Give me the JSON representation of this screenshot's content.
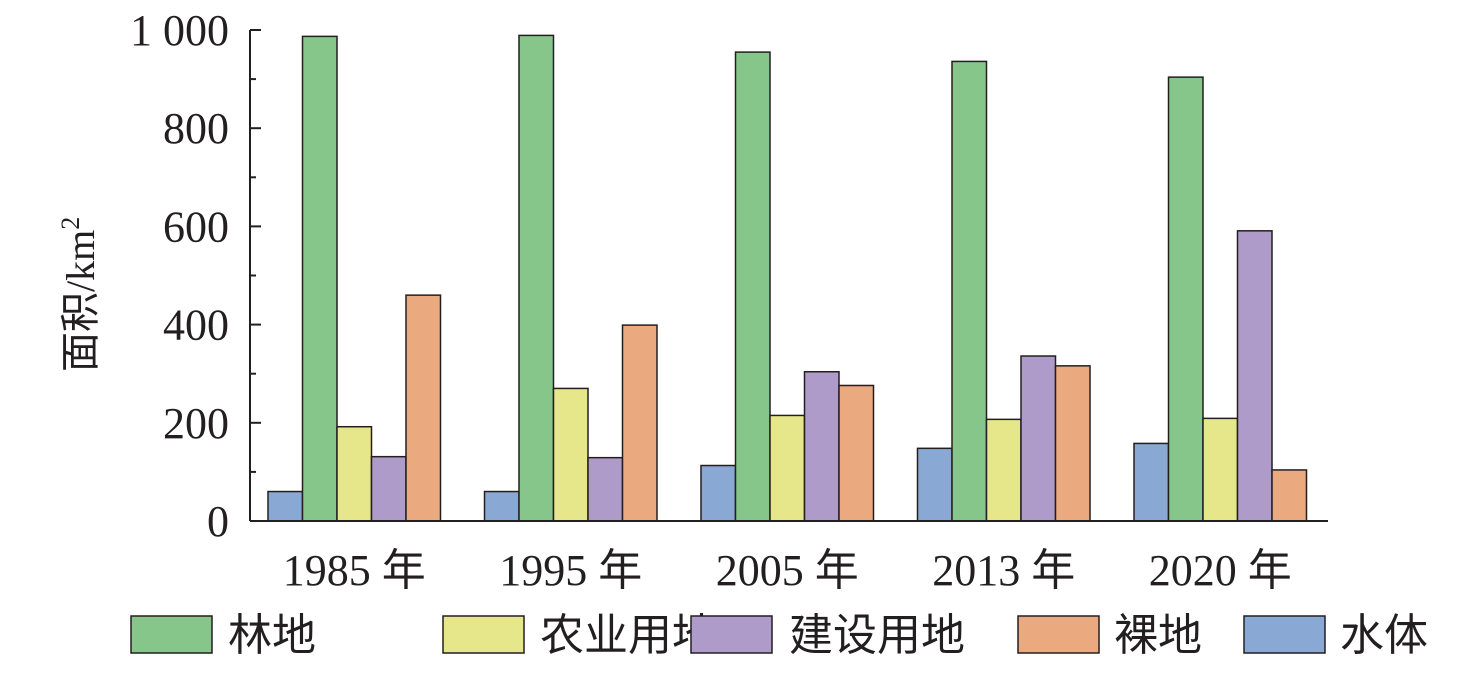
{
  "chart_data": {
    "type": "bar",
    "ylabel": "面积/km",
    "ylabel_superscript": "2",
    "ylim": [
      0,
      1000
    ],
    "yticks": [
      {
        "value": 0,
        "label": "0"
      },
      {
        "value": 200,
        "label": "200"
      },
      {
        "value": 400,
        "label": "400"
      },
      {
        "value": 600,
        "label": "600"
      },
      {
        "value": 800,
        "label": "800"
      },
      {
        "value": 1000,
        "label": "1 000"
      }
    ],
    "categories": [
      "1985 年",
      "1995 年",
      "2005 年",
      "2013 年",
      "2020 年"
    ],
    "series": [
      {
        "name": "水体",
        "color": "#8aa8d4",
        "values": [
          60,
          60,
          113,
          148,
          158
        ]
      },
      {
        "name": "林地",
        "color": "#86c68a",
        "values": [
          987,
          989,
          955,
          936,
          904
        ]
      },
      {
        "name": "农业用地",
        "color": "#e6e68a",
        "values": [
          192,
          270,
          215,
          207,
          209
        ]
      },
      {
        "name": "建设用地",
        "color": "#ae9bc9",
        "values": [
          131,
          129,
          304,
          336,
          591
        ]
      },
      {
        "name": "裸地",
        "color": "#eaa97e",
        "values": [
          460,
          399,
          276,
          316,
          104
        ]
      }
    ],
    "legend": {
      "position": "bottom",
      "order": [
        "林地",
        "农业用地",
        "建设用地",
        "裸地",
        "水体"
      ]
    },
    "grid": false
  }
}
